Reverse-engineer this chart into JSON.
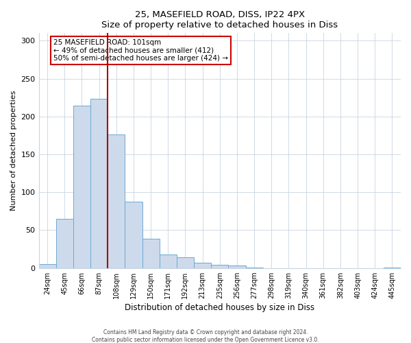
{
  "title1": "25, MASEFIELD ROAD, DISS, IP22 4PX",
  "title2": "Size of property relative to detached houses in Diss",
  "xlabel": "Distribution of detached houses by size in Diss",
  "ylabel": "Number of detached properties",
  "bar_labels": [
    "24sqm",
    "45sqm",
    "66sqm",
    "87sqm",
    "108sqm",
    "129sqm",
    "150sqm",
    "171sqm",
    "192sqm",
    "213sqm",
    "235sqm",
    "256sqm",
    "277sqm",
    "298sqm",
    "319sqm",
    "340sqm",
    "361sqm",
    "382sqm",
    "403sqm",
    "424sqm",
    "445sqm"
  ],
  "bar_values": [
    5,
    65,
    214,
    223,
    176,
    88,
    39,
    18,
    14,
    7,
    4,
    3,
    1,
    0,
    0,
    0,
    0,
    0,
    0,
    0,
    1
  ],
  "bar_color": "#cddaeb",
  "bar_edgecolor": "#6aaad4",
  "vline_x_index": 4,
  "vline_color": "#aa0000",
  "annotation_title": "25 MASEFIELD ROAD: 101sqm",
  "annotation_line1": "← 49% of detached houses are smaller (412)",
  "annotation_line2": "50% of semi-detached houses are larger (424) →",
  "annotation_box_edgecolor": "#cc0000",
  "ylim": [
    0,
    310
  ],
  "yticks": [
    0,
    50,
    100,
    150,
    200,
    250,
    300
  ],
  "fig_bg": "#ffffff",
  "ax_bg": "#ffffff",
  "grid_color": "#c8d4e0",
  "footer1": "Contains HM Land Registry data © Crown copyright and database right 2024.",
  "footer2": "Contains public sector information licensed under the Open Government Licence v3.0."
}
